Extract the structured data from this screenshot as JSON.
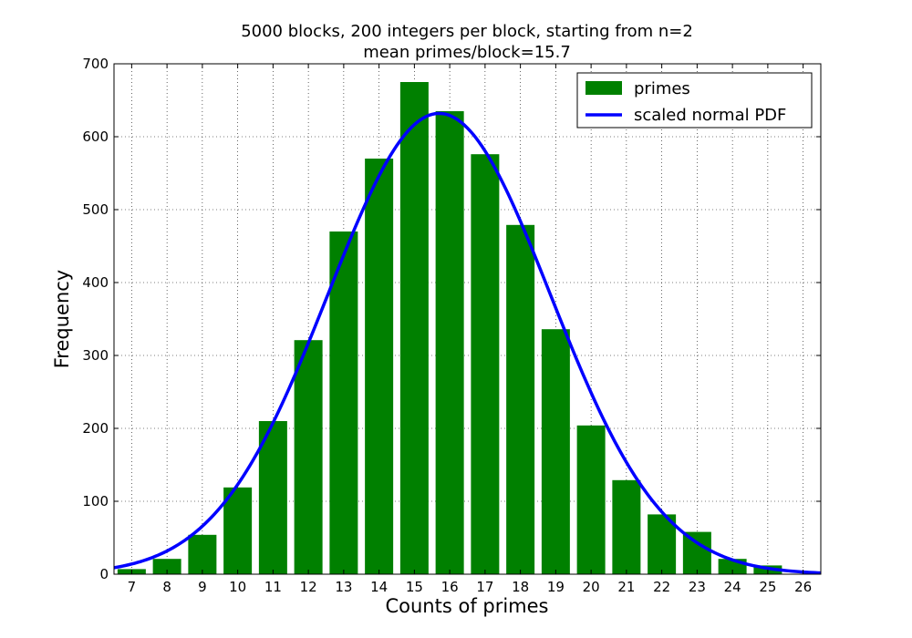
{
  "chart_data": {
    "type": "bar",
    "title_lines": [
      "5000 blocks, 200 integers per block, starting from n=2",
      "mean primes/block=15.7"
    ],
    "xlabel": "Counts of primes",
    "ylabel": "Frequency",
    "categories": [
      7,
      8,
      9,
      10,
      11,
      12,
      13,
      14,
      15,
      16,
      17,
      18,
      19,
      20,
      21,
      22,
      23,
      24,
      25,
      26
    ],
    "xlim": [
      6.5,
      26.5
    ],
    "ylim": [
      0,
      700
    ],
    "yticks": [
      0,
      100,
      200,
      300,
      400,
      500,
      600,
      700
    ],
    "grid": true,
    "legend_position": "top-right",
    "series": [
      {
        "name": "primes",
        "type": "bar",
        "color": "#008000",
        "values": [
          7,
          21,
          54,
          119,
          210,
          321,
          470,
          570,
          675,
          635,
          576,
          479,
          336,
          204,
          129,
          82,
          58,
          21,
          12,
          0
        ]
      },
      {
        "name": "scaled normal PDF",
        "type": "line",
        "color": "#0000ff",
        "mean": 15.7,
        "sd": 3.15,
        "peak": 632
      }
    ]
  }
}
